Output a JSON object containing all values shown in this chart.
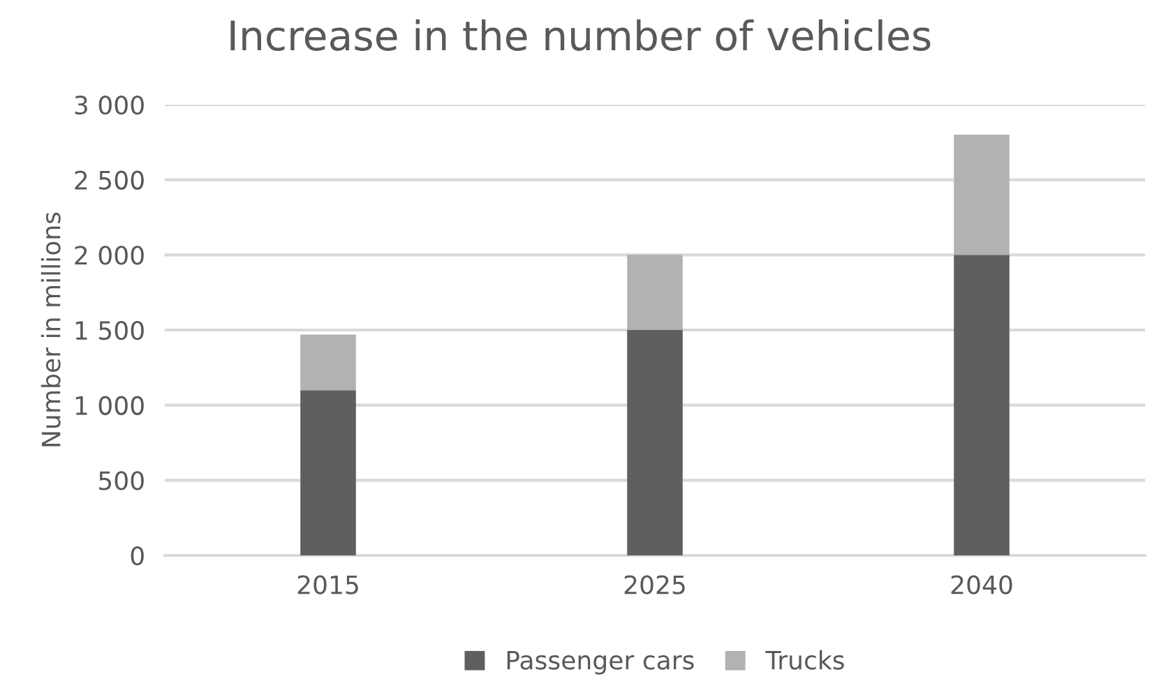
{
  "chart_data": {
    "type": "bar",
    "title": "Increase in the number of vehicles",
    "ylabel": "Number in millions",
    "categories": [
      "2015",
      "2025",
      "2040"
    ],
    "stacked": true,
    "series": [
      {
        "name": "Passenger cars",
        "color": "#5f5f5f",
        "values": [
          1100,
          1500,
          2000
        ]
      },
      {
        "name": "Trucks",
        "color": "#b2b2b2",
        "values": [
          370,
          500,
          800
        ]
      }
    ],
    "ylim": [
      0,
      3000
    ],
    "yticks": [
      0,
      500,
      {
        "value": 1000,
        "label": "1 000"
      },
      {
        "value": 1500,
        "label": "1 500"
      },
      {
        "value": 2000,
        "label": "2 000"
      },
      {
        "value": 2500,
        "label": "2 500"
      },
      {
        "value": 3000,
        "label": "3 000"
      }
    ],
    "grid": "y",
    "legend": "bottom"
  }
}
